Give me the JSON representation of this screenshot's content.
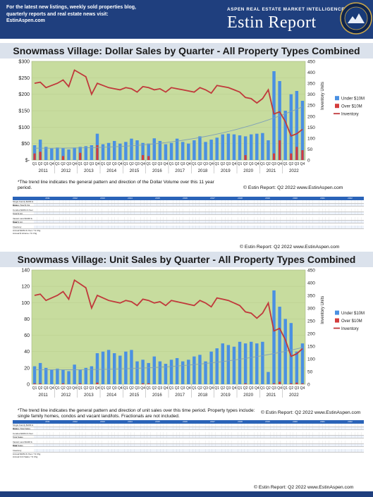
{
  "header": {
    "promo": "For the latest new listings, weekly sold properties blog, quarterly reports and real estate news visit: EstinAspen.com",
    "kicker": "ASPEN REAL ESTATE MARKET INTELLIGENCE",
    "brand": "Estin Report"
  },
  "chart_data": [
    {
      "type": "bar",
      "title": "Snowmass Village:  Dollar Sales by Quarter  -  All Property Types Combined",
      "ylabel": "",
      "y2label": "Inventory Units",
      "ylim": [
        0,
        300
      ],
      "y2lim": [
        0,
        450
      ],
      "ytick_labels": [
        "$-",
        "$50",
        "$100",
        "$150",
        "$200",
        "$250",
        "$300"
      ],
      "y2tick_labels": [
        "0",
        "50",
        "100",
        "150",
        "200",
        "250",
        "300",
        "350",
        "400",
        "450"
      ],
      "quarter_labels": [
        "Q1",
        "Q2",
        "Q3",
        "Q4"
      ],
      "years": [
        "2011",
        "2012",
        "2013",
        "2014",
        "2015",
        "2016",
        "2017",
        "2018",
        "2019",
        "2020",
        "2021",
        "2022"
      ],
      "legend_position": "right",
      "series": [
        {
          "name": "Under $10M",
          "color": "#4a90e2",
          "values": [
            45,
            62,
            40,
            35,
            38,
            36,
            32,
            38,
            40,
            42,
            45,
            80,
            48,
            52,
            58,
            50,
            55,
            65,
            60,
            52,
            50,
            66,
            58,
            48,
            52,
            65,
            55,
            50,
            60,
            72,
            55,
            62,
            68,
            78,
            80,
            78,
            75,
            72,
            78,
            80,
            82,
            60,
            270,
            240,
            150,
            200,
            210,
            180
          ]
        },
        {
          "name": "Over $10M",
          "color": "#d43c3c",
          "values": [
            20,
            25,
            0,
            0,
            0,
            12,
            0,
            0,
            22,
            0,
            0,
            45,
            0,
            0,
            0,
            0,
            0,
            0,
            0,
            15,
            12,
            0,
            0,
            0,
            0,
            0,
            0,
            0,
            0,
            0,
            0,
            0,
            0,
            0,
            0,
            0,
            0,
            15,
            0,
            0,
            0,
            0,
            20,
            60,
            0,
            20,
            40,
            30
          ]
        },
        {
          "name": "Inventory",
          "color": "#c0393b",
          "values": [
            350,
            355,
            330,
            340,
            350,
            365,
            335,
            410,
            395,
            380,
            300,
            350,
            340,
            330,
            325,
            320,
            330,
            325,
            310,
            335,
            330,
            320,
            325,
            310,
            330,
            325,
            320,
            315,
            310,
            330,
            320,
            305,
            340,
            335,
            330,
            320,
            310,
            285,
            280,
            260,
            280,
            320,
            210,
            220,
            175,
            110,
            120,
            140
          ]
        }
      ],
      "note": "*The trend line indicates the general pattern and direction of the Dollar Volume over this 11 year period.",
      "credit": "© Estin Report: Q2 2022 www.EstinAspen.com"
    },
    {
      "type": "bar",
      "title": "Snowmass Village:  Unit Sales by Quarter  -  All Property Types Combined",
      "ylabel": "",
      "y2label": "Inventory Units",
      "ylim": [
        0,
        140
      ],
      "y2lim": [
        0,
        450
      ],
      "ytick_labels": [
        "0",
        "20",
        "40",
        "60",
        "80",
        "100",
        "120",
        "140"
      ],
      "y2tick_labels": [
        "0",
        "50",
        "100",
        "150",
        "200",
        "250",
        "300",
        "350",
        "400",
        "450"
      ],
      "quarter_labels": [
        "Q1",
        "Q2",
        "Q3",
        "Q4"
      ],
      "years": [
        "2011",
        "2012",
        "2013",
        "2014",
        "2015",
        "2016",
        "2017",
        "2018",
        "2019",
        "2020",
        "2021",
        "2022"
      ],
      "legend_position": "right",
      "series": [
        {
          "name": "Under $10M",
          "color": "#4a90e2",
          "values": [
            22,
            26,
            20,
            18,
            19,
            18,
            16,
            24,
            18,
            20,
            22,
            38,
            40,
            42,
            38,
            35,
            40,
            42,
            28,
            30,
            26,
            34,
            28,
            25,
            30,
            32,
            28,
            30,
            34,
            36,
            28,
            40,
            44,
            50,
            48,
            46,
            52,
            50,
            52,
            50,
            52,
            15,
            115,
            95,
            80,
            75,
            40,
            50
          ]
        },
        {
          "name": "Over $10M",
          "color": "#d43c3c",
          "values": [
            1,
            1,
            0,
            0,
            0,
            1,
            0,
            0,
            1,
            0,
            0,
            2,
            0,
            0,
            0,
            0,
            0,
            0,
            0,
            1,
            1,
            0,
            0,
            0,
            0,
            0,
            0,
            0,
            0,
            0,
            0,
            0,
            0,
            0,
            0,
            0,
            0,
            1,
            0,
            0,
            0,
            0,
            1,
            3,
            0,
            1,
            2,
            1
          ]
        },
        {
          "name": "Inventory",
          "color": "#c0393b",
          "values": [
            350,
            355,
            330,
            340,
            350,
            365,
            335,
            410,
            395,
            380,
            300,
            350,
            340,
            330,
            325,
            320,
            330,
            325,
            310,
            335,
            330,
            320,
            325,
            310,
            330,
            325,
            320,
            315,
            310,
            330,
            320,
            305,
            340,
            335,
            330,
            320,
            310,
            285,
            280,
            260,
            280,
            320,
            210,
            220,
            175,
            110,
            120,
            140
          ]
        }
      ],
      "note": "*The trend line indicates the general pattern and direction of unit sales over this time period. Property types include: single family homes, condos and vacant land/lots. Fractionals are not included.",
      "credit": "© Estin Report: Q2 2022 www.EstinAspen.com"
    }
  ],
  "table1": {
    "years": [
      "2011",
      "2012",
      "2013",
      "2014",
      "2015",
      "2016",
      "2017",
      "2018",
      "2019",
      "2020",
      "2021",
      "2022"
    ],
    "rows": [
      {
        "label": "Single Family $10M & Over",
        "shaded": false
      },
      {
        "label": "Homes Total $ Vol.",
        "shaded": true
      },
      {
        "label": "",
        "shaded": false
      },
      {
        "label": "Condos $10M & Over",
        "shaded": false
      },
      {
        "label": "Total $ Vol.",
        "shaded": true
      },
      {
        "label": "",
        "shaded": false
      },
      {
        "label": "Vacant Land $10M & Over",
        "shaded": false
      },
      {
        "label": "Total $ Vol.",
        "shaded": true
      },
      {
        "label": "",
        "shaded": false
      },
      {
        "label": "Inventory",
        "shaded": true
      }
    ],
    "footer1": "Annual $10M & Over / % Chg",
    "footer2": "Annual $ Volume / % Chg"
  },
  "table2": {
    "years": [
      "2011",
      "2012",
      "2013",
      "2014",
      "2015",
      "2016",
      "2017",
      "2018",
      "2019",
      "2020",
      "2021",
      "2022"
    ],
    "rows": [
      {
        "label": "Single Family $10M & Over",
        "shaded": false
      },
      {
        "label": "Homes Total Sales",
        "shaded": true
      },
      {
        "label": "",
        "shaded": false
      },
      {
        "label": "Condos $10M & Over",
        "shaded": false
      },
      {
        "label": "Total Sales",
        "shaded": true
      },
      {
        "label": "",
        "shaded": false
      },
      {
        "label": "Vacant Land $10M & Over",
        "shaded": false
      },
      {
        "label": "Total Sales",
        "shaded": true
      },
      {
        "label": "",
        "shaded": false
      },
      {
        "label": "Inventory",
        "shaded": true
      }
    ],
    "footer1": "Annual $10M & Over / % Chg",
    "footer2": "Annual Unit Sales / % Chg"
  },
  "credit_bottom": "© Estin Report: Q2 2022 www.EstinAspen.com"
}
